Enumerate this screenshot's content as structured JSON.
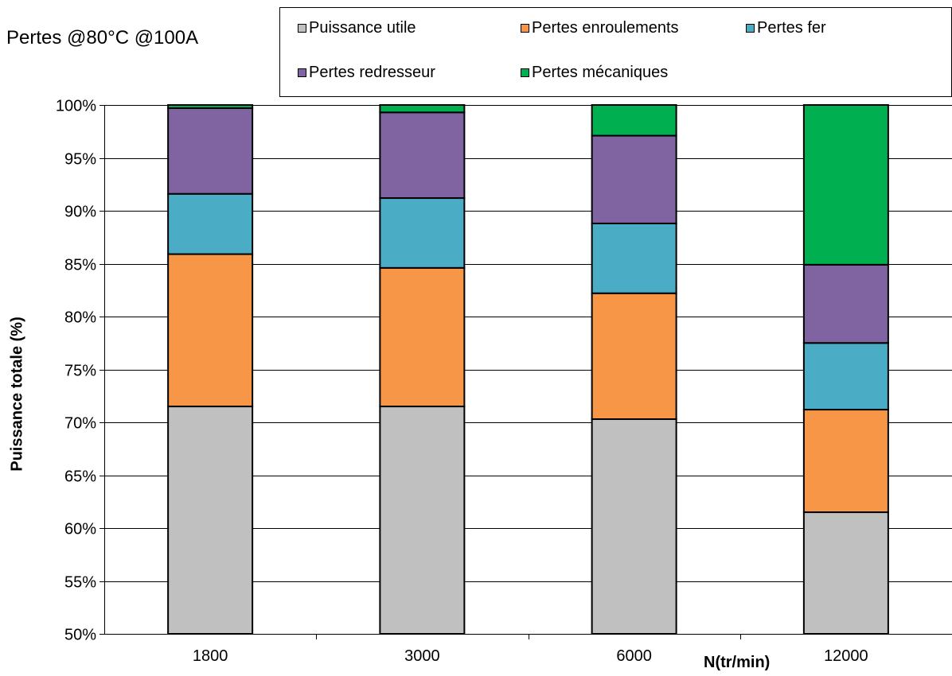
{
  "chart_data": {
    "type": "bar",
    "stacked": true,
    "normalized": true,
    "title": "Pertes @80°C @100A",
    "xlabel": "N(tr/min)",
    "ylabel": "Puissance totale (%)",
    "categories": [
      "1800",
      "3000",
      "6000",
      "12000"
    ],
    "ylim": [
      50,
      100
    ],
    "ytick_step": 5,
    "ytick_suffix": "%",
    "grid": true,
    "legend_position": "top-right",
    "series": [
      {
        "name": "Puissance utile",
        "color": "#c0c0c0",
        "values": [
          71.5,
          71.5,
          70.3,
          61.5
        ]
      },
      {
        "name": "Pertes enroulements",
        "color": "#f79646",
        "values": [
          14.4,
          13.1,
          11.9,
          9.7
        ]
      },
      {
        "name": "Pertes fer",
        "color": "#4bacc6",
        "values": [
          5.7,
          6.6,
          6.6,
          6.3
        ]
      },
      {
        "name": "Pertes redresseur",
        "color": "#8064a2",
        "values": [
          8.1,
          8.1,
          8.3,
          7.4
        ]
      },
      {
        "name": "Pertes mécaniques",
        "color": "#00b050",
        "values": [
          0.3,
          0.7,
          2.9,
          15.1
        ]
      }
    ]
  }
}
